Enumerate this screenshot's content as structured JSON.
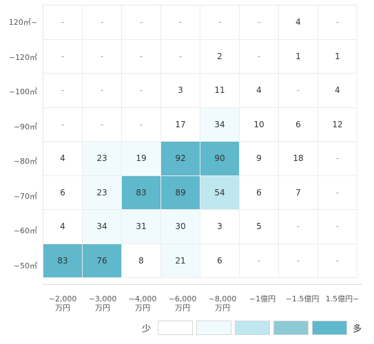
{
  "chart_data": {
    "type": "heatmap",
    "rows": [
      "120㎡~",
      "~120㎡",
      "~100㎡",
      "~90㎡",
      "~80㎡",
      "~70㎡",
      "~60㎡",
      "~50㎡"
    ],
    "columns": [
      {
        "line1": "~2,000",
        "line2": "万円"
      },
      {
        "line1": "~3,000",
        "line2": "万円"
      },
      {
        "line1": "~4,000",
        "line2": "万円"
      },
      {
        "line1": "~6,000",
        "line2": "万円"
      },
      {
        "line1": "~8,000",
        "line2": "万円"
      },
      {
        "line1": "~1億円",
        "line2": ""
      },
      {
        "line1": "~1.5億円",
        "line2": ""
      },
      {
        "line1": "1.5億円~",
        "line2": ""
      }
    ],
    "cells": [
      [
        "-",
        "-",
        "-",
        "-",
        "-",
        "-",
        "4",
        "-"
      ],
      [
        "-",
        "-",
        "-",
        "-",
        "2",
        "-",
        "1",
        "1"
      ],
      [
        "-",
        "-",
        "-",
        "3",
        "11",
        "4",
        "-",
        "4"
      ],
      [
        "-",
        "-",
        "-",
        "17",
        "34",
        "10",
        "6",
        "12"
      ],
      [
        "4",
        "23",
        "19",
        "92",
        "90",
        "9",
        "18",
        "-"
      ],
      [
        "6",
        "23",
        "83",
        "89",
        "54",
        "6",
        "7",
        "-"
      ],
      [
        "4",
        "34",
        "31",
        "30",
        "3",
        "5",
        "-",
        "-"
      ],
      [
        "83",
        "76",
        "8",
        "21",
        "6",
        "-",
        "-",
        "-"
      ]
    ],
    "levels": [
      [
        0,
        0,
        0,
        0,
        0,
        0,
        0,
        0
      ],
      [
        0,
        0,
        0,
        0,
        0,
        0,
        0,
        0
      ],
      [
        0,
        0,
        0,
        0,
        0,
        0,
        0,
        0
      ],
      [
        0,
        0,
        0,
        0,
        1,
        0,
        0,
        0
      ],
      [
        0,
        1,
        1,
        4,
        4,
        0,
        0,
        0
      ],
      [
        0,
        1,
        4,
        4,
        2,
        0,
        0,
        0
      ],
      [
        0,
        1,
        1,
        1,
        0,
        0,
        0,
        0
      ],
      [
        4,
        4,
        0,
        1,
        0,
        0,
        0,
        0
      ]
    ],
    "legend": {
      "low_label": "少",
      "high_label": "多",
      "colors": [
        "#ffffff",
        "#f1fbfd",
        "#bee7ef",
        "#8dcad6",
        "#5fb8cb"
      ]
    }
  }
}
